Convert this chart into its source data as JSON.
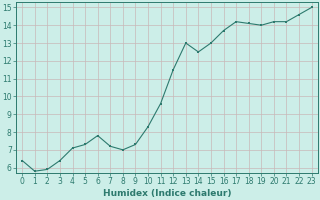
{
  "x": [
    0,
    1,
    2,
    3,
    4,
    5,
    6,
    7,
    8,
    9,
    10,
    11,
    12,
    13,
    14,
    15,
    16,
    17,
    18,
    19,
    20,
    21,
    22,
    23
  ],
  "y": [
    6.4,
    5.8,
    5.9,
    6.4,
    7.1,
    7.3,
    7.8,
    7.2,
    7.0,
    7.3,
    8.3,
    9.6,
    11.5,
    13.0,
    12.5,
    13.0,
    13.7,
    14.2,
    14.1,
    14.0,
    14.2,
    14.2,
    14.6,
    15.0
  ],
  "xlabel": "Humidex (Indice chaleur)",
  "xlim_min": -0.5,
  "xlim_max": 23.5,
  "ylim_min": 5.7,
  "ylim_max": 15.3,
  "yticks": [
    6,
    7,
    8,
    9,
    10,
    11,
    12,
    13,
    14,
    15
  ],
  "xticks": [
    0,
    1,
    2,
    3,
    4,
    5,
    6,
    7,
    8,
    9,
    10,
    11,
    12,
    13,
    14,
    15,
    16,
    17,
    18,
    19,
    20,
    21,
    22,
    23
  ],
  "line_color": "#2d7a6e",
  "marker_color": "#2d7a6e",
  "bg_color": "#cceee8",
  "grid_color": "#c9b8b8",
  "spine_color": "#2d7a6e",
  "font_color": "#2d7a6e",
  "xlabel_fontsize": 6.5,
  "tick_fontsize": 5.5,
  "linewidth": 0.8,
  "markersize": 1.8
}
